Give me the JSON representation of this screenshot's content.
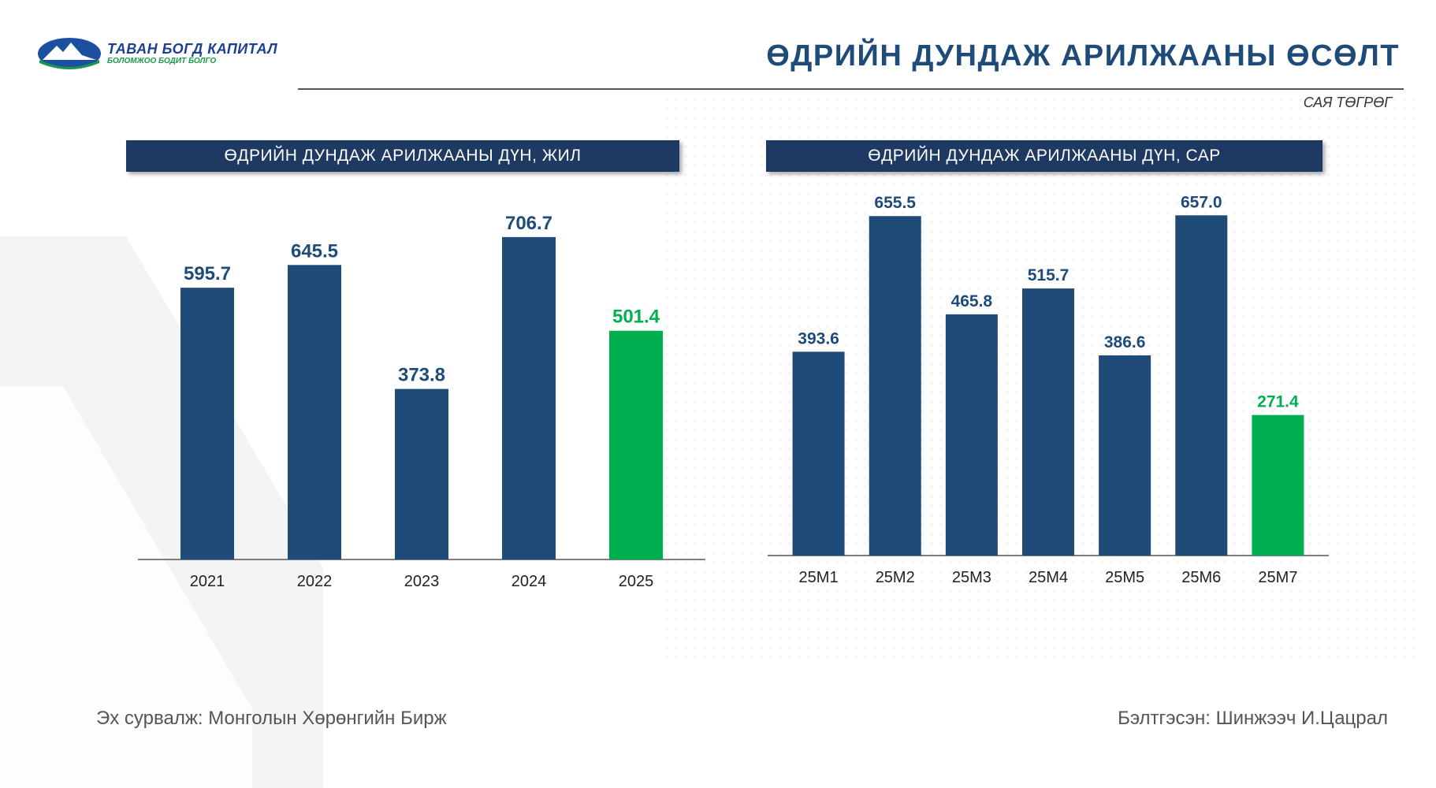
{
  "logo": {
    "name": "ТАВАН БОГД КАПИТАЛ",
    "tagline": "БОЛОМЖОО БОДИТ БОЛГО"
  },
  "title": "ӨДРИЙН ДУНДАЖ АРИЛЖААНЫ ӨСӨЛТ",
  "unit": "САЯ ТӨГРӨГ",
  "colors": {
    "bar": "#1f4b78",
    "highlight": "#00b050",
    "header_bg": "#1f3a62"
  },
  "chart_data": [
    {
      "type": "bar",
      "title": "ӨДРИЙН ДУНДАЖ АРИЛЖААНЫ ДҮН, ЖИЛ",
      "categories": [
        "2021",
        "2022",
        "2023",
        "2024",
        "2025"
      ],
      "values": [
        595.7,
        645.5,
        373.8,
        706.7,
        501.4
      ],
      "labels": [
        "595.7",
        "645.5",
        "373.8",
        "706.7",
        "501.4"
      ],
      "highlight": [
        false,
        false,
        false,
        false,
        true
      ],
      "ylim": [
        0,
        760
      ]
    },
    {
      "type": "bar",
      "title": "ӨДРИЙН ДУНДАЖ АРИЛЖААНЫ ДҮН, САР",
      "categories": [
        "25M1",
        "25M2",
        "25M3",
        "25M4",
        "25M5",
        "25M6",
        "25M7"
      ],
      "values": [
        393.6,
        655.5,
        465.8,
        515.7,
        386.6,
        657.0,
        271.4
      ],
      "labels": [
        "393.6",
        "655.5",
        "465.8",
        "515.7",
        "386.6",
        "657.0",
        "271.4"
      ],
      "highlight": [
        false,
        false,
        false,
        false,
        false,
        false,
        true
      ],
      "ylim": [
        0,
        700
      ]
    }
  ],
  "footer": {
    "source": "Эх сурвалж: Монголын Хөрөнгийн Бирж",
    "prepared_by": "Бэлтгэсэн: Шинжээч И.Цацрал"
  }
}
